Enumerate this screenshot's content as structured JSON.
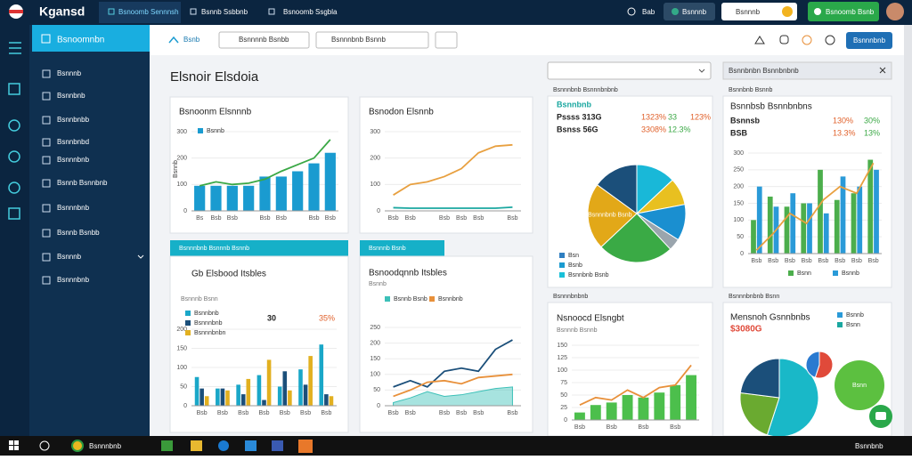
{
  "topbar": {
    "logo": "Kgansd",
    "tabs": [
      "Bsnoomb Sennnsh",
      "Bsnnb Ssbbnb",
      "Bsnoomb Ssgbla"
    ],
    "user": "Bab",
    "status": "Bsnnnb",
    "search": "Bsnnnb",
    "button": "Bsnoomb Bsnb"
  },
  "sidebar": {
    "header": "Bsnoomnbn",
    "items": [
      "Bsnnnb",
      "Bsnnbnb",
      "Bsnnbnbb",
      "Bsnnbnbd",
      "Bsnnnbnb",
      "Bsnnb Bsnnbnb",
      "Bsnnnbnb",
      "Bsnnb Bsnbb",
      "Bsnnnb",
      "Bsnnnbnb"
    ]
  },
  "toolbar": {
    "home": "Bsnb",
    "filter_1": "Bsnnnnb Bsnbb",
    "filter_2": "Bsnnnbnb Bsnnb",
    "button": "Bsnnnbnb"
  },
  "page_title": "Elsnoir Elsdoia",
  "panel": {
    "title": "Bsnnbnbn Bsnnbnbnb"
  },
  "taskbar": {
    "app": "Bsnnnbnb",
    "clock": "Bsnnbnb"
  },
  "chart_data": [
    {
      "type": "combo",
      "title": "Bsnoonm Elsnnnb",
      "ylabel": "Bsnnb",
      "categories": [
        "Bs",
        "Bsb",
        "Bsb",
        null,
        "Bsb",
        "Bsb",
        null,
        "Bsb",
        "Bsb"
      ],
      "ylim": [
        0,
        300
      ],
      "yticks": [
        0,
        100,
        200,
        300
      ],
      "grid": true,
      "series": [
        {
          "name": "Bsnnb",
          "type": "bar",
          "color": "#1a9bd0",
          "values": [
            95,
            95,
            95,
            95,
            130,
            130,
            150,
            180,
            220
          ]
        },
        {
          "type": "line",
          "color": "#3aa845",
          "values": [
            95,
            110,
            100,
            105,
            120,
            150,
            175,
            200,
            270
          ]
        }
      ]
    },
    {
      "type": "line",
      "title": "Bsnodon Elsnnb",
      "categories": [
        "Bsb",
        "Bsb",
        null,
        "Bsb",
        "Bsb",
        "Bsb",
        null,
        "Bsb"
      ],
      "ylim": [
        0,
        300
      ],
      "yticks": [
        0,
        100,
        200,
        300
      ],
      "grid": true,
      "series": [
        {
          "type": "line",
          "color": "#e8a040",
          "values": [
            60,
            100,
            110,
            130,
            160,
            220,
            245,
            250
          ]
        },
        {
          "type": "line",
          "color": "#1aa7a0",
          "values": [
            12,
            10,
            10,
            10,
            10,
            10,
            10,
            14
          ]
        }
      ]
    },
    {
      "type": "pie",
      "label": "Bsnnnbnb Bsnnnbnbnb",
      "stats": [
        [
          "Bsnnbnb"
        ],
        [
          "Pssss 313G",
          "1323%",
          "33",
          "123%"
        ],
        [
          "Bsnss 56G",
          "3308%",
          "12.3%"
        ]
      ],
      "values": [
        13,
        9,
        12,
        4,
        25,
        22,
        15
      ],
      "colors": [
        "#19b8d8",
        "#e8c020",
        "#1a8fd0",
        "#9aa5ad",
        "#3aaa45",
        "#e2a818",
        "#1b4f7a"
      ],
      "categories": [
        null,
        null,
        null,
        null,
        null,
        "Bsnnnbnb Bsnb",
        null
      ],
      "legend": [
        {
          "name": "Bsn",
          "color": "#2f7fc1"
        },
        {
          "name": "Bsnb",
          "color": "#1a9bd0"
        },
        {
          "name": "Bsnnbnb Bsnb",
          "color": "#19c0d8"
        }
      ]
    },
    {
      "type": "combo",
      "label": "Bsnnbnb Bsnnb",
      "title": "Bsnnbsb Bsnnbnbns",
      "stats": [
        [
          "Bsnnsb",
          "130%",
          "30%"
        ],
        [
          "BSB",
          "13.3%",
          "13%"
        ]
      ],
      "categories": [
        "Bsb",
        "Bsb",
        "Bsb",
        "Bsb",
        "Bsb",
        "Bsb",
        "Bsb",
        "Bsb"
      ],
      "ylim": [
        0,
        300
      ],
      "yticks": [
        0,
        50,
        100,
        150,
        200,
        250,
        300
      ],
      "grid": true,
      "series": [
        {
          "name": "Bsnn",
          "type": "bar",
          "color": "#4cae4c",
          "values": [
            100,
            170,
            140,
            150,
            250,
            160,
            180,
            280
          ]
        },
        {
          "name": "Bsnnb",
          "type": "bar",
          "color": "#2a9ad8",
          "values": [
            200,
            140,
            180,
            150,
            120,
            230,
            200,
            250
          ]
        },
        {
          "type": "line",
          "color": "#e8a040",
          "values": [
            10,
            60,
            120,
            90,
            160,
            200,
            180,
            270
          ]
        }
      ]
    },
    {
      "type": "bar",
      "strip": "Bsnnnbnb Bsnnnb Bsnnb",
      "title": "Gb Elsbood Itsbles",
      "subtitle": "Bsnnnb Bsnn",
      "stats": [
        [
          "30",
          "35%"
        ]
      ],
      "categories": [
        "Bsb",
        "Bsb",
        "Bsb",
        "Bsb",
        "Bsb",
        "Bsb",
        "Bsb"
      ],
      "ylim": [
        0,
        200
      ],
      "yticks": [
        0,
        50,
        100,
        150,
        200
      ],
      "grid": true,
      "series": [
        {
          "name": "Bsnnbnb",
          "type": "bar",
          "color": "#1aa7c8",
          "values": [
            75,
            45,
            55,
            80,
            50,
            95,
            160
          ]
        },
        {
          "name": "Bsnnnbnb",
          "type": "bar",
          "color": "#1b4f7a",
          "values": [
            45,
            45,
            30,
            15,
            90,
            55,
            30
          ]
        },
        {
          "name": "Bsnnnbnbn",
          "type": "bar",
          "color": "#e2b020",
          "values": [
            25,
            40,
            70,
            120,
            40,
            130,
            25
          ]
        }
      ]
    },
    {
      "type": "line",
      "strip": "Bsnnnb Bsnb",
      "title": "Bsnoodqnnb Itsbles",
      "subtitle": "Bsnnb",
      "categories": [
        "Bsb",
        "Bsb",
        null,
        "Bsb",
        "Bsb",
        "Bsb",
        null,
        "Bsb"
      ],
      "ylim": [
        0,
        250
      ],
      "yticks": [
        0,
        50,
        100,
        150,
        200,
        250
      ],
      "grid": true,
      "series": [
        {
          "name": "Bsnnb Bsnb",
          "type": "area",
          "color": "#3cc0b8",
          "values": [
            10,
            25,
            45,
            30,
            35,
            45,
            55,
            60
          ]
        },
        {
          "type": "line",
          "color": "#1b4f7a",
          "values": [
            60,
            80,
            60,
            110,
            120,
            110,
            180,
            210
          ]
        },
        {
          "name": "Bsnnbnb",
          "type": "line",
          "color": "#e8903a",
          "values": [
            30,
            50,
            75,
            80,
            70,
            90,
            95,
            100
          ]
        }
      ]
    },
    {
      "type": "combo",
      "label": "Bsnnnbnbnb",
      "title": "Nsnoocd Elsngbt",
      "subtitle": "Bsnnnb Bsnnb",
      "categories": [
        "Bsb",
        null,
        "Bsb",
        null,
        "Bsb",
        null,
        "Bsb",
        null
      ],
      "ylim": [
        0,
        150
      ],
      "yticks": [
        0,
        25,
        50,
        75,
        100,
        125,
        150
      ],
      "grid": true,
      "series": [
        {
          "type": "bar",
          "color": "#4cbf4c",
          "values": [
            15,
            30,
            35,
            50,
            45,
            55,
            70,
            90
          ]
        },
        {
          "type": "line",
          "color": "#e8903a",
          "values": [
            30,
            45,
            40,
            60,
            45,
            65,
            70,
            110
          ]
        }
      ]
    },
    {
      "type": "pie",
      "label": "Bsnnnbnbnb Bsnn",
      "title": "Mensnoh Gsnnbnbs",
      "subtitle": "$3080G",
      "values": [
        55,
        22,
        23
      ],
      "colors": [
        "#19b8c8",
        "#6aaa30",
        "#1b4f7a"
      ],
      "categories": [
        null,
        null,
        null
      ],
      "legend": [
        {
          "name": "Bsnnb",
          "color": "#2a9ad8"
        },
        {
          "name": "Bsnn",
          "color": "#1aa7a0"
        }
      ]
    },
    {
      "type": "pie",
      "values": [
        55,
        45
      ],
      "colors": [
        "#e04a3a",
        "#2a7ad0"
      ],
      "categories": [
        null,
        null
      ]
    },
    {
      "type": "pie",
      "values": [
        100
      ],
      "colors": [
        "#5cc040"
      ],
      "categories": [
        "Bsnn"
      ]
    }
  ]
}
